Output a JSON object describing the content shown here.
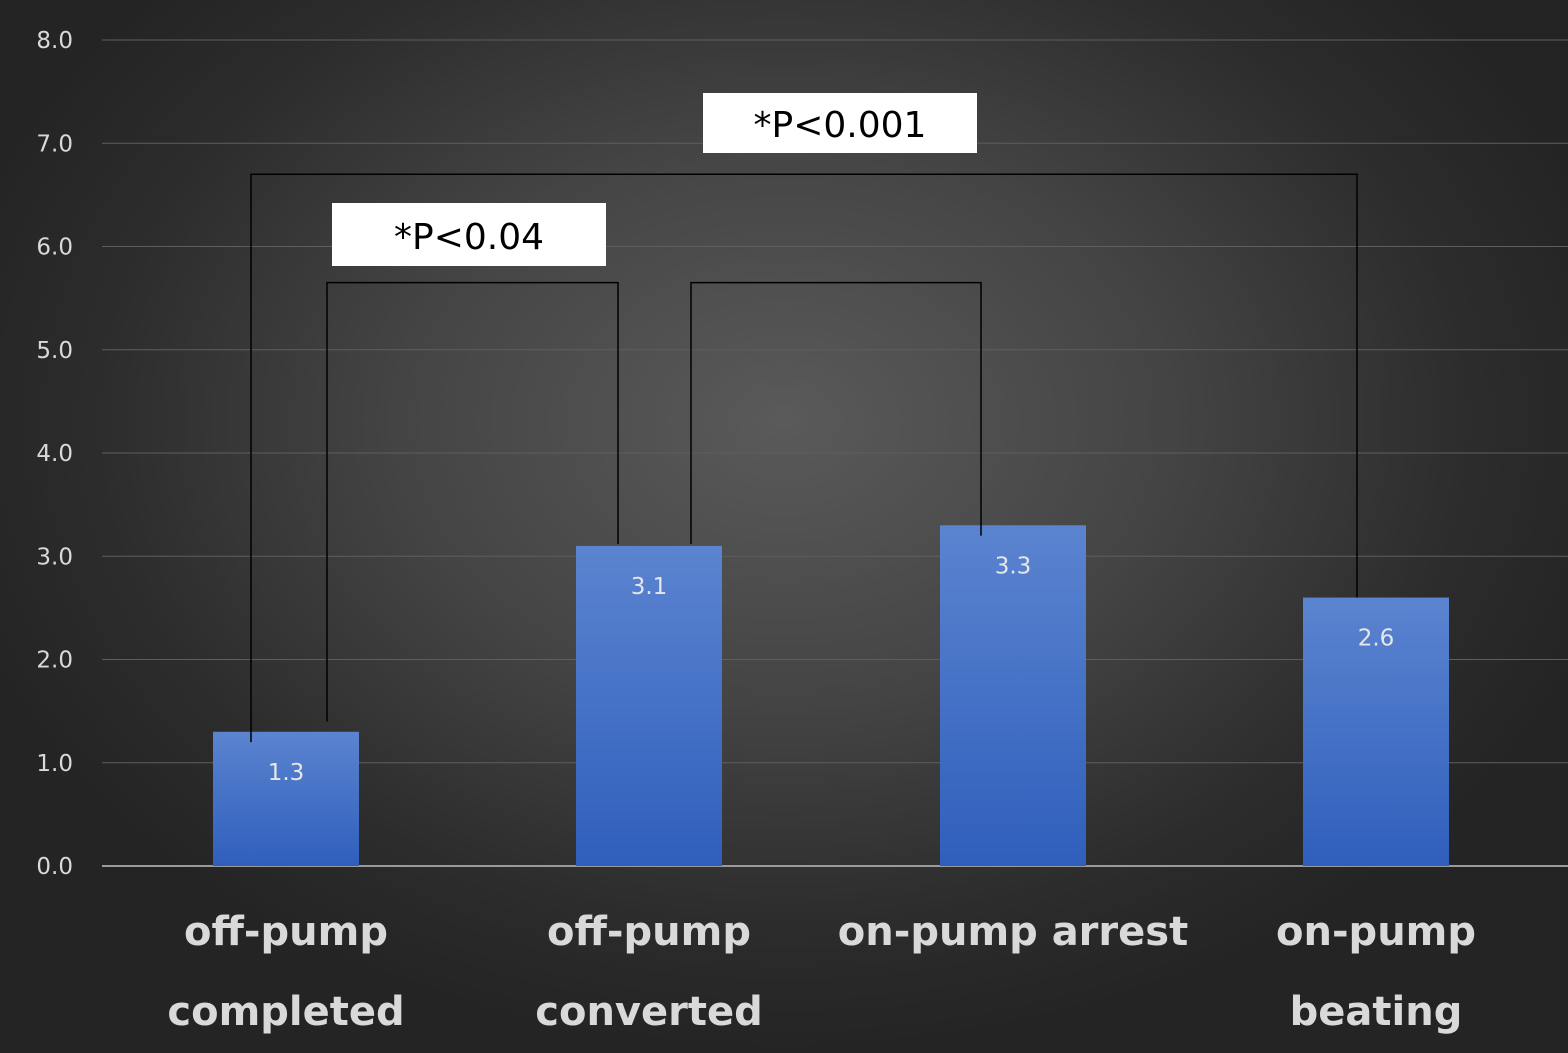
{
  "chart_data": {
    "type": "bar",
    "categories": [
      [
        "off-pump",
        "completed"
      ],
      [
        "off-pump",
        "converted"
      ],
      [
        "on-pump arrest"
      ],
      [
        "on-pump",
        "beating"
      ]
    ],
    "values": [
      1.3,
      3.1,
      3.3,
      2.6
    ],
    "data_labels": [
      "1.3",
      "3.1",
      "3.3",
      "2.6"
    ],
    "ylim": [
      0,
      8
    ],
    "yticks": [
      "0.0",
      "1.0",
      "2.0",
      "3.0",
      "4.0",
      "5.0",
      "6.0",
      "7.0",
      "8.0"
    ],
    "grid": true,
    "bar_color": "#4472c4",
    "significance": [
      {
        "label": "*P<0.04",
        "from": 0,
        "to": 1,
        "level": 5.65
      },
      {
        "label": "*P<0.001",
        "from": 0,
        "to": 3,
        "level": 6.7
      }
    ],
    "extra_bracket_arm": {
      "from": 1,
      "to": 2,
      "level": 5.65
    }
  }
}
